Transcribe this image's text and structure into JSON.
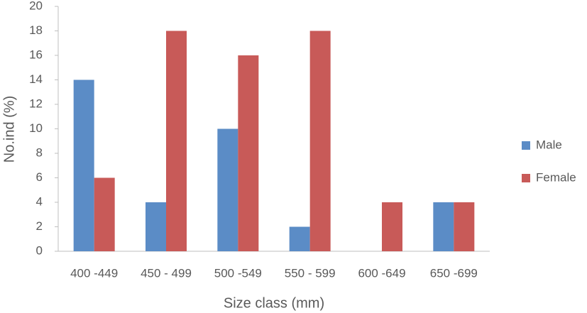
{
  "chart_data": {
    "type": "bar",
    "x_label": "Size class (mm)",
    "y_label": "No.ind (%)",
    "categories": [
      "400 -449",
      "450 - 499",
      "500 -549",
      "550 - 599",
      "600 -649",
      "650 -699"
    ],
    "series": [
      {
        "name": "Male",
        "color": "#5b8cc6",
        "values": [
          14,
          4,
          10,
          2,
          0,
          4
        ]
      },
      {
        "name": "Female",
        "color": "#c85a58",
        "values": [
          6,
          18,
          16,
          18,
          4,
          4
        ]
      }
    ],
    "ylim": [
      0,
      20
    ],
    "yticks": [
      0,
      2,
      4,
      6,
      8,
      10,
      12,
      14,
      16,
      18,
      20
    ],
    "grid": false,
    "legend": "right"
  }
}
